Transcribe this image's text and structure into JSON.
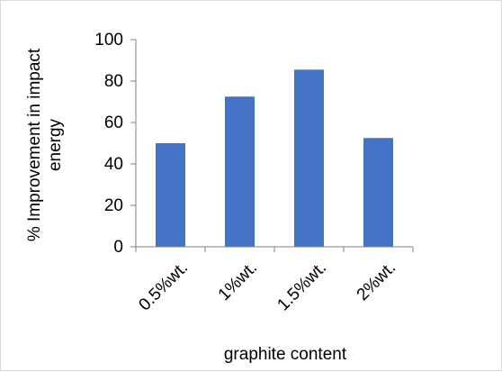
{
  "chart_data": {
    "type": "bar",
    "categories": [
      "0.5%wt.",
      "1%wt.",
      "1.5%wt.",
      "2%wt."
    ],
    "values": [
      50,
      72.5,
      85.5,
      52.5
    ],
    "xlabel": "graphite content",
    "ylabel_line1": "% Improvement in impact",
    "ylabel_line2": "energy",
    "ylim": [
      0,
      100
    ],
    "yticks": [
      "0",
      "20",
      "40",
      "60",
      "80",
      "100"
    ],
    "grid": false,
    "legend": "none",
    "bar_color": "#4472C4"
  }
}
